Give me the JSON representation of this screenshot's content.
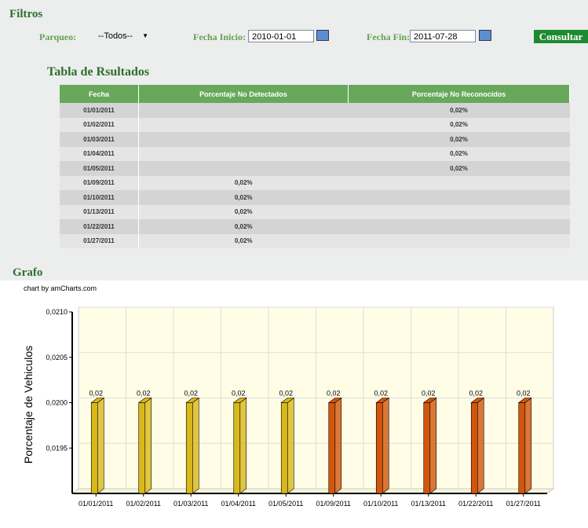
{
  "filters": {
    "title": "Filtros",
    "parqueo_label": "Parqueo:",
    "parqueo_value": "--Todos--",
    "fecha_inicio_label": "Fecha Inicio:",
    "fecha_inicio": "2010-01-01",
    "fecha_fin_label": "Fecha Fin:",
    "fecha_fin": "2011-07-28",
    "button": "Consultar"
  },
  "table": {
    "title": "Tabla de Rsultados",
    "columns": [
      "Fecha",
      "Porcentaje No Detectados",
      "Porcentaje No Reconocidos"
    ],
    "rows": [
      [
        "01/01/2011",
        null,
        "0,02%"
      ],
      [
        "01/02/2011",
        null,
        "0,02%"
      ],
      [
        "01/03/2011",
        null,
        "0,02%"
      ],
      [
        "01/04/2011",
        null,
        "0,02%"
      ],
      [
        "01/05/2011",
        null,
        "0,02%"
      ],
      [
        "01/09/2011",
        "0,02%",
        null
      ],
      [
        "01/10/2011",
        "0,02%",
        null
      ],
      [
        "01/13/2011",
        "0,02%",
        null
      ],
      [
        "01/22/2011",
        "0,02%",
        null
      ],
      [
        "01/27/2011",
        "0,02%",
        null
      ]
    ]
  },
  "chart_data": {
    "type": "bar3d",
    "title": "Grafo",
    "credit": "chart by amCharts.com",
    "y_label": "Porcentaje de Vehiculos",
    "categories": [
      "01/01/2011",
      "01/02/2011",
      "01/03/2011",
      "01/04/2011",
      "01/05/2011",
      "01/09/2011",
      "01/10/2011",
      "01/13/2011",
      "01/22/2011",
      "01/27/2011"
    ],
    "values": [
      0.02,
      0.02,
      0.02,
      0.02,
      0.02,
      0.02,
      0.02,
      0.02,
      0.02,
      0.02
    ],
    "value_labels": [
      "0,02",
      "0,02",
      "0,02",
      "0,02",
      "0,02",
      "0,02",
      "0,02",
      "0,02",
      "0,02",
      "0,02"
    ],
    "colors": [
      "#d9b81a",
      "#d9b81a",
      "#d9b81a",
      "#d9b81a",
      "#d9b81a",
      "#d2560c",
      "#d2560c",
      "#d2560c",
      "#d2560c",
      "#d2560c"
    ],
    "ylim": [
      0.019,
      0.021
    ],
    "yticks": [
      {
        "value": 0.0195,
        "label": "0,0195"
      },
      {
        "value": 0.02,
        "label": "0,0200"
      },
      {
        "value": 0.0205,
        "label": "0,0205"
      },
      {
        "value": 0.021,
        "label": "0,0210"
      }
    ],
    "grid": true
  }
}
